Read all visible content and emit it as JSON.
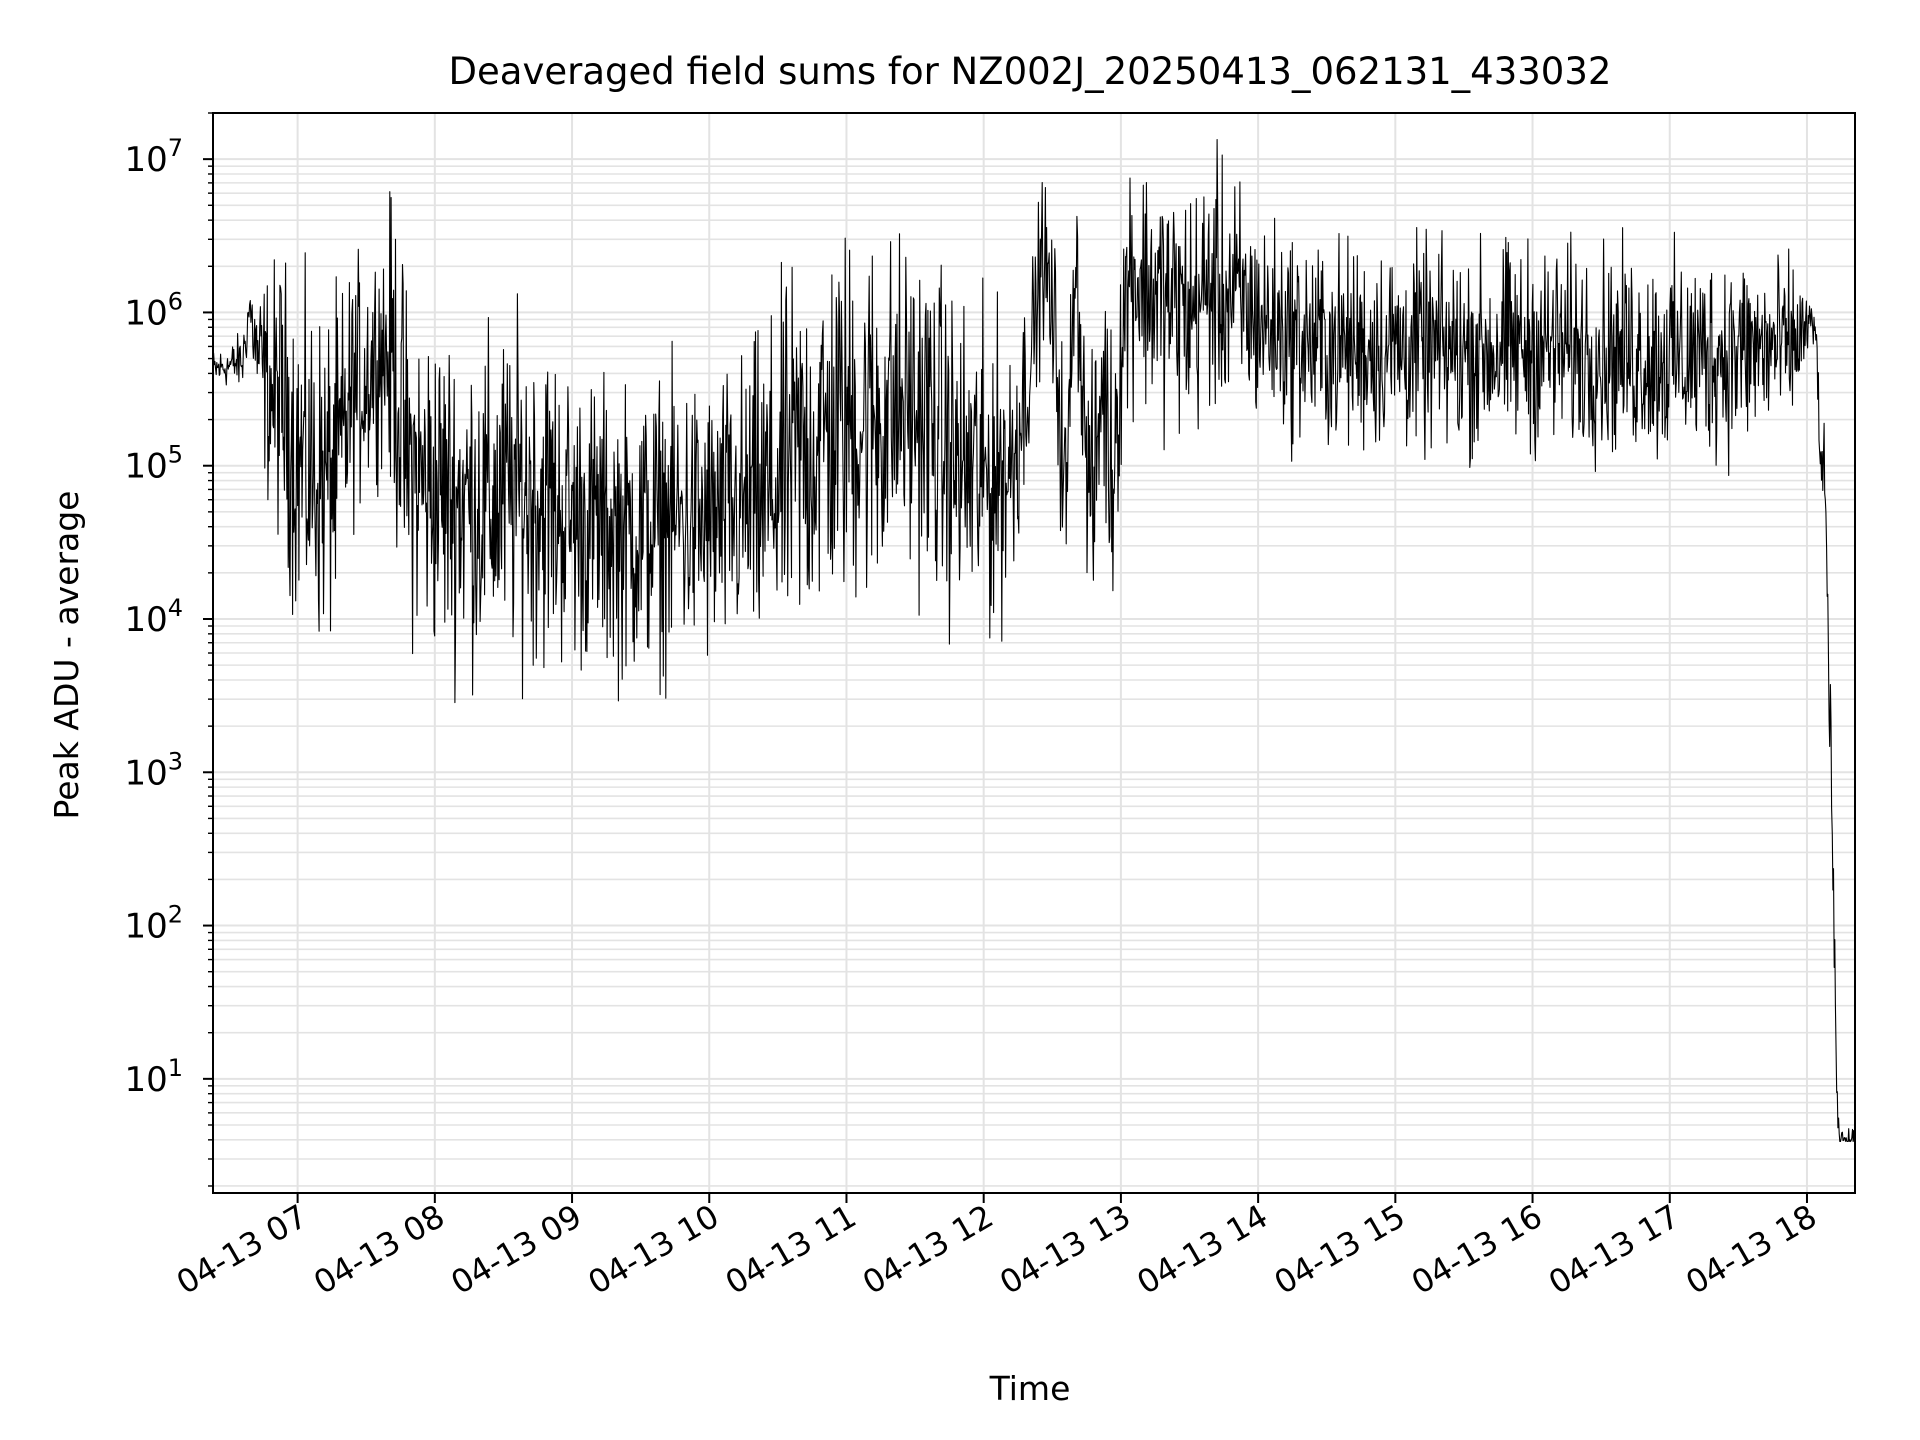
{
  "chart_data": {
    "type": "line",
    "title": "Deaveraged field sums for NZ002J_20250413_062131_433032",
    "xlabel": "Time",
    "ylabel": "Peak ADU - average",
    "yscale": "log",
    "grid": true,
    "line_color": "#000000",
    "grid_color": "#e3e3e3",
    "xlim": [
      "2025-04-13 06:23",
      "2025-04-13 18:21"
    ],
    "ylim": [
      1.8,
      20000000
    ],
    "x_ticks": [
      {
        "label": "04-13 07",
        "time": "2025-04-13 07:00"
      },
      {
        "label": "04-13 08",
        "time": "2025-04-13 08:00"
      },
      {
        "label": "04-13 09",
        "time": "2025-04-13 09:00"
      },
      {
        "label": "04-13 10",
        "time": "2025-04-13 10:00"
      },
      {
        "label": "04-13 11",
        "time": "2025-04-13 11:00"
      },
      {
        "label": "04-13 12",
        "time": "2025-04-13 12:00"
      },
      {
        "label": "04-13 13",
        "time": "2025-04-13 13:00"
      },
      {
        "label": "04-13 14",
        "time": "2025-04-13 14:00"
      },
      {
        "label": "04-13 15",
        "time": "2025-04-13 15:00"
      },
      {
        "label": "04-13 16",
        "time": "2025-04-13 16:00"
      },
      {
        "label": "04-13 17",
        "time": "2025-04-13 17:00"
      },
      {
        "label": "04-13 18",
        "time": "2025-04-13 18:00"
      }
    ],
    "y_ticks": [
      {
        "base": "10",
        "exp": "1",
        "value": 10
      },
      {
        "base": "10",
        "exp": "2",
        "value": 100
      },
      {
        "base": "10",
        "exp": "3",
        "value": 1000
      },
      {
        "base": "10",
        "exp": "4",
        "value": 10000
      },
      {
        "base": "10",
        "exp": "5",
        "value": 100000
      },
      {
        "base": "10",
        "exp": "6",
        "value": 1000000
      },
      {
        "base": "10",
        "exp": "7",
        "value": 10000000
      }
    ],
    "series": [
      {
        "x": [
          "2025-04-13 06:23",
          "2025-04-13 06:30",
          "2025-04-13 06:36",
          "2025-04-13 06:39",
          "2025-04-13 06:42",
          "2025-04-13 06:48",
          "2025-04-13 06:54",
          "2025-04-13 07:00",
          "2025-04-13 07:06",
          "2025-04-13 07:12",
          "2025-04-13 07:18",
          "2025-04-13 07:24",
          "2025-04-13 07:30",
          "2025-04-13 07:36",
          "2025-04-13 07:42",
          "2025-04-13 07:48",
          "2025-04-13 07:54",
          "2025-04-13 08:00",
          "2025-04-13 08:12",
          "2025-04-13 08:24",
          "2025-04-13 08:36",
          "2025-04-13 08:48",
          "2025-04-13 09:00",
          "2025-04-13 09:12",
          "2025-04-13 09:24",
          "2025-04-13 09:36",
          "2025-04-13 09:48",
          "2025-04-13 10:00",
          "2025-04-13 10:12",
          "2025-04-13 10:24",
          "2025-04-13 10:36",
          "2025-04-13 10:48",
          "2025-04-13 11:00",
          "2025-04-13 11:12",
          "2025-04-13 11:24",
          "2025-04-13 11:36",
          "2025-04-13 11:48",
          "2025-04-13 12:00",
          "2025-04-13 12:12",
          "2025-04-13 12:20",
          "2025-04-13 12:26",
          "2025-04-13 12:32",
          "2025-04-13 12:36",
          "2025-04-13 12:40",
          "2025-04-13 12:45",
          "2025-04-13 12:48",
          "2025-04-13 12:52",
          "2025-04-13 12:56",
          "2025-04-13 13:00",
          "2025-04-13 13:04",
          "2025-04-13 13:10",
          "2025-04-13 13:20",
          "2025-04-13 13:30",
          "2025-04-13 13:40",
          "2025-04-13 13:50",
          "2025-04-13 14:00",
          "2025-04-13 14:15",
          "2025-04-13 14:30",
          "2025-04-13 15:00",
          "2025-04-13 15:30",
          "2025-04-13 16:00",
          "2025-04-13 16:30",
          "2025-04-13 17:00",
          "2025-04-13 17:30",
          "2025-04-13 17:54",
          "2025-04-13 18:00",
          "2025-04-13 18:04",
          "2025-04-13 18:06",
          "2025-04-13 18:08",
          "2025-04-13 18:10",
          "2025-04-13 18:11",
          "2025-04-13 18:12",
          "2025-04-13 18:13",
          "2025-04-13 18:14",
          "2025-04-13 18:15",
          "2025-04-13 18:16",
          "2025-04-13 18:21"
        ],
        "center": [
          420000,
          450000,
          480000,
          1100000,
          550000,
          300000,
          250000,
          110000,
          90000,
          80000,
          100000,
          300000,
          400000,
          600000,
          500000,
          100000,
          80000,
          70000,
          60000,
          55000,
          70000,
          60000,
          45000,
          40000,
          35000,
          40000,
          45000,
          40000,
          50000,
          60000,
          100000,
          150000,
          200000,
          200000,
          250000,
          200000,
          100000,
          80000,
          100000,
          450000,
          2500000,
          500000,
          50000,
          3000000,
          100000,
          60000,
          400000,
          80000,
          600000,
          2000000,
          1500000,
          1200000,
          1000000,
          1500000,
          1200000,
          900000,
          700000,
          600000,
          600000,
          550000,
          600000,
          550000,
          500000,
          550000,
          600000,
          800000,
          750000,
          100000,
          60000,
          3000,
          500,
          50,
          8,
          4,
          4,
          4,
          4
        ],
        "spread": [
          0.1,
          0.1,
          0.15,
          0.15,
          0.3,
          0.6,
          0.7,
          0.8,
          0.8,
          0.8,
          0.8,
          0.6,
          0.6,
          0.5,
          0.8,
          0.8,
          0.8,
          0.8,
          0.8,
          0.8,
          0.8,
          0.8,
          0.7,
          0.7,
          0.7,
          0.7,
          0.7,
          0.7,
          0.7,
          0.8,
          0.9,
          0.9,
          0.9,
          0.9,
          0.8,
          0.8,
          0.8,
          0.8,
          0.7,
          0.4,
          0.4,
          0.5,
          0.5,
          0.4,
          0.5,
          0.6,
          0.6,
          0.7,
          0.6,
          0.6,
          0.6,
          0.6,
          0.6,
          0.6,
          0.6,
          0.5,
          0.5,
          0.5,
          0.5,
          0.5,
          0.5,
          0.5,
          0.5,
          0.5,
          0.4,
          0.2,
          0.1,
          0.15,
          0.3,
          0.4,
          0.3,
          0.3,
          0.1,
          0.05,
          0.05,
          0.05,
          0.05
        ]
      }
    ]
  }
}
